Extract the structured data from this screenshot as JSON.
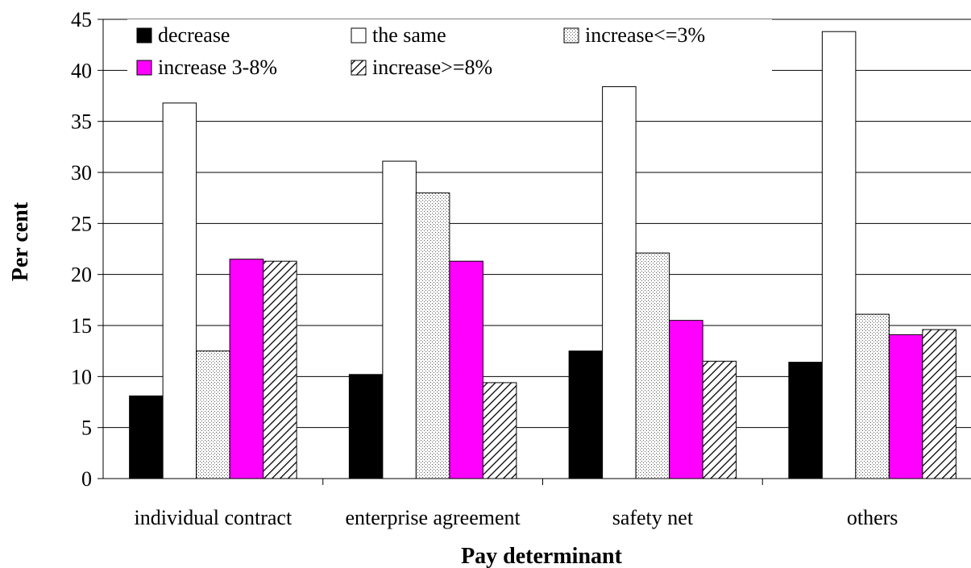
{
  "chart_data": {
    "type": "bar",
    "xlabel": "Pay determinant",
    "ylabel": "Per cent",
    "ylim": [
      0,
      45
    ],
    "yticks": [
      "0",
      "5",
      "10",
      "15",
      "20",
      "25",
      "30",
      "35",
      "40",
      "45"
    ],
    "ytick_values": [
      0,
      5,
      10,
      15,
      20,
      25,
      30,
      35,
      40,
      45
    ],
    "categories": [
      "individual contract",
      "enterprise agreement",
      "safety net",
      "others"
    ],
    "grid": true,
    "legend_position": "top",
    "series": [
      {
        "name": "decrease",
        "values": [
          8.1,
          10.2,
          12.5,
          11.4
        ],
        "color": "#000000",
        "pattern": "solid"
      },
      {
        "name": "the same",
        "values": [
          36.8,
          31.1,
          38.4,
          43.8
        ],
        "color": "#ffffff",
        "pattern": "solid"
      },
      {
        "name": "increase<=3%",
        "values": [
          12.5,
          28.0,
          22.1,
          16.1
        ],
        "color": "#ffffff",
        "pattern": "dots"
      },
      {
        "name": "increase 3-8%",
        "values": [
          21.5,
          21.3,
          15.5,
          14.1
        ],
        "color": "#ff00ff",
        "pattern": "solid"
      },
      {
        "name": "increase>=8%",
        "values": [
          21.3,
          9.4,
          11.5,
          14.6
        ],
        "color": "#ffffff",
        "pattern": "hatch"
      }
    ]
  }
}
